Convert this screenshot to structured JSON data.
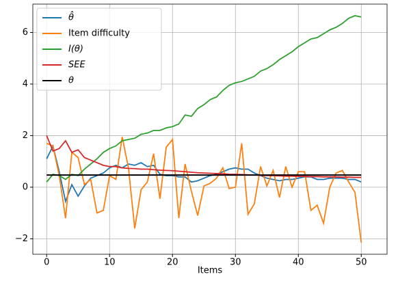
{
  "chart_data": {
    "type": "line",
    "xlabel": "Items",
    "x": [
      0,
      1,
      2,
      3,
      4,
      5,
      6,
      7,
      8,
      9,
      10,
      11,
      12,
      13,
      14,
      15,
      16,
      17,
      18,
      19,
      20,
      21,
      22,
      23,
      24,
      25,
      26,
      27,
      28,
      29,
      30,
      31,
      32,
      33,
      34,
      35,
      36,
      37,
      38,
      39,
      40,
      41,
      42,
      43,
      44,
      45,
      46,
      47,
      48,
      49,
      50
    ],
    "series": [
      {
        "name": "θ̂",
        "color": "#1f77b4",
        "values": [
          1.1,
          1.6,
          0.6,
          -0.55,
          0.1,
          -0.35,
          0.05,
          0.35,
          0.45,
          0.55,
          0.75,
          0.85,
          0.75,
          0.9,
          0.85,
          0.95,
          0.8,
          0.85,
          0.5,
          0.45,
          0.45,
          0.4,
          0.4,
          0.2,
          0.25,
          0.35,
          0.45,
          0.5,
          0.6,
          0.7,
          0.75,
          0.7,
          0.7,
          0.55,
          0.45,
          0.35,
          0.3,
          0.25,
          0.3,
          0.3,
          0.35,
          0.4,
          0.4,
          0.3,
          0.3,
          0.35,
          0.35,
          0.35,
          0.3,
          0.3,
          0.2
        ]
      },
      {
        "name": "Item difficulty",
        "color": "#ff7f0e",
        "values": [
          1.7,
          1.6,
          0.45,
          -1.2,
          1.35,
          1.15,
          0.1,
          0.3,
          -1.0,
          -0.9,
          0.45,
          0.3,
          1.95,
          0.75,
          -1.6,
          -0.1,
          0.2,
          1.3,
          -0.45,
          1.55,
          1.85,
          -1.2,
          0.9,
          -0.15,
          -1.1,
          0.05,
          0.15,
          0.35,
          0.75,
          -0.05,
          0.0,
          1.7,
          -1.05,
          -0.65,
          0.8,
          0.05,
          0.65,
          -0.4,
          0.8,
          0.0,
          0.6,
          0.6,
          -0.9,
          -0.7,
          -1.4,
          0.0,
          0.55,
          0.65,
          0.2,
          -0.2,
          -2.15
        ]
      },
      {
        "name": "I(θ)",
        "color": "#2ca02c",
        "values": [
          0.2,
          0.5,
          0.45,
          0.3,
          0.5,
          0.45,
          0.7,
          0.9,
          1.1,
          1.35,
          1.5,
          1.6,
          1.8,
          1.85,
          1.9,
          2.05,
          2.1,
          2.2,
          2.2,
          2.3,
          2.35,
          2.45,
          2.8,
          2.75,
          3.05,
          3.2,
          3.4,
          3.5,
          3.75,
          3.95,
          4.05,
          4.1,
          4.2,
          4.3,
          4.5,
          4.6,
          4.75,
          4.95,
          5.1,
          5.25,
          5.45,
          5.6,
          5.75,
          5.8,
          5.95,
          6.1,
          6.2,
          6.35,
          6.55,
          6.65,
          6.6
        ]
      },
      {
        "name": "SEE",
        "color": "#d62728",
        "values": [
          2.0,
          1.4,
          1.5,
          1.8,
          1.35,
          1.45,
          1.15,
          1.05,
          0.95,
          0.85,
          0.8,
          0.8,
          0.75,
          0.73,
          0.72,
          0.7,
          0.7,
          0.68,
          0.66,
          0.65,
          0.64,
          0.62,
          0.6,
          0.58,
          0.56,
          0.55,
          0.54,
          0.53,
          0.52,
          0.5,
          0.5,
          0.49,
          0.48,
          0.47,
          0.46,
          0.45,
          0.45,
          0.44,
          0.43,
          0.43,
          0.42,
          0.42,
          0.41,
          0.41,
          0.4,
          0.4,
          0.4,
          0.39,
          0.39,
          0.38,
          0.38
        ]
      },
      {
        "name": "θ",
        "color": "#000000",
        "values": [
          0.47,
          0.47,
          0.47,
          0.47,
          0.47,
          0.47,
          0.47,
          0.47,
          0.47,
          0.47,
          0.47,
          0.47,
          0.47,
          0.47,
          0.47,
          0.47,
          0.47,
          0.47,
          0.47,
          0.47,
          0.47,
          0.47,
          0.47,
          0.47,
          0.47,
          0.47,
          0.47,
          0.47,
          0.47,
          0.47,
          0.47,
          0.47,
          0.47,
          0.47,
          0.47,
          0.47,
          0.47,
          0.47,
          0.47,
          0.47,
          0.47,
          0.47,
          0.47,
          0.47,
          0.47,
          0.47,
          0.47,
          0.47,
          0.47,
          0.47,
          0.47
        ]
      }
    ],
    "xlim": [
      -2.2,
      54.1
    ],
    "xticks": [
      0,
      10,
      20,
      30,
      40,
      50
    ],
    "ylim": [
      -2.6,
      7.1
    ],
    "yticks": [
      {
        "value": -2,
        "label": "−2"
      },
      0,
      2,
      4,
      6
    ],
    "grid": true,
    "legend": "upper left"
  }
}
